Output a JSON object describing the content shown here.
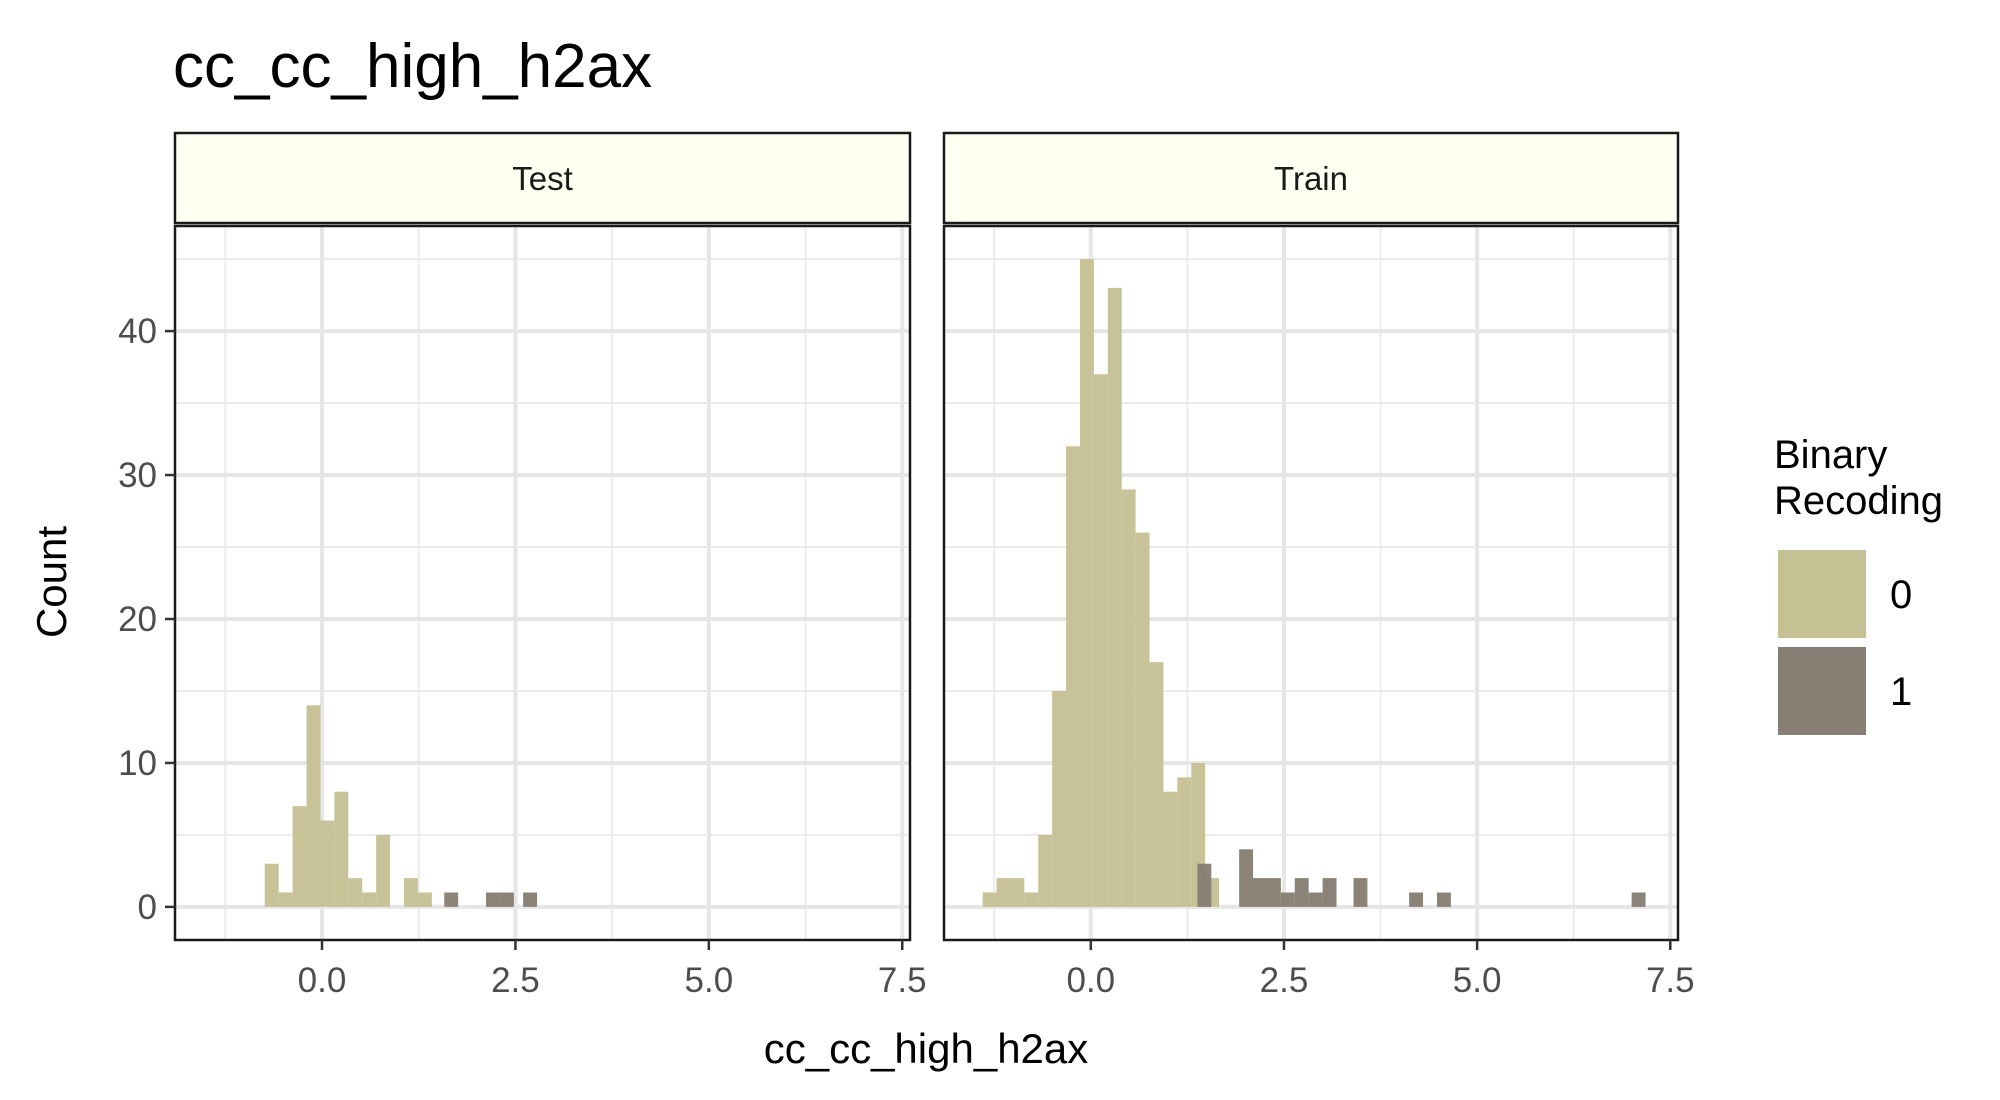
{
  "chart_data": {
    "type": "bar",
    "title": "cc_cc_high_h2ax",
    "xlabel": "cc_cc_high_h2ax",
    "ylabel": "Count",
    "xlim": [
      -1.9,
      7.6
    ],
    "ylim": [
      -2.3,
      47.3
    ],
    "xticks": [
      0.0,
      2.5,
      5.0,
      7.5
    ],
    "xtick_labels": [
      "0.0",
      "2.5",
      "5.0",
      "7.5"
    ],
    "yticks": [
      0,
      10,
      20,
      30,
      40
    ],
    "ytick_labels": [
      "0",
      "10",
      "20",
      "30",
      "40"
    ],
    "bin_width": 0.18,
    "grid": true,
    "legend_position": "right",
    "legend": {
      "title": "Binary\nRecoding",
      "items": [
        {
          "label": "0",
          "color": "#c6c095"
        },
        {
          "label": "1",
          "color": "#877f73"
        }
      ]
    },
    "panels": [
      {
        "label": "Test",
        "series": [
          {
            "name": "0",
            "color": "#c6c095",
            "bins": [
              [
                -0.74,
                3
              ],
              [
                -0.56,
                1
              ],
              [
                -0.38,
                7
              ],
              [
                -0.2,
                14
              ],
              [
                -0.02,
                6
              ],
              [
                0.16,
                8
              ],
              [
                0.34,
                2
              ],
              [
                0.52,
                1
              ],
              [
                0.7,
                5
              ],
              [
                0.88,
                0
              ],
              [
                1.06,
                2
              ],
              [
                1.24,
                1
              ]
            ]
          },
          {
            "name": "1",
            "color": "#877f73",
            "bins": [
              [
                1.58,
                1
              ],
              [
                2.12,
                1
              ],
              [
                2.3,
                1
              ],
              [
                2.6,
                1
              ]
            ]
          }
        ]
      },
      {
        "label": "Train",
        "series": [
          {
            "name": "0",
            "color": "#c6c095",
            "bins": [
              [
                -1.4,
                1
              ],
              [
                -1.22,
                2
              ],
              [
                -1.04,
                2
              ],
              [
                -0.86,
                1
              ],
              [
                -0.68,
                5
              ],
              [
                -0.5,
                15
              ],
              [
                -0.32,
                32
              ],
              [
                -0.14,
                45
              ],
              [
                0.04,
                37
              ],
              [
                0.22,
                43
              ],
              [
                0.4,
                29
              ],
              [
                0.58,
                26
              ],
              [
                0.76,
                17
              ],
              [
                0.94,
                8
              ],
              [
                1.12,
                9
              ],
              [
                1.3,
                10
              ],
              [
                1.48,
                2
              ]
            ]
          },
          {
            "name": "1",
            "color": "#877f73",
            "bins": [
              [
                1.38,
                3
              ],
              [
                1.92,
                4
              ],
              [
                2.1,
                2
              ],
              [
                2.28,
                2
              ],
              [
                2.46,
                1
              ],
              [
                2.64,
                2
              ],
              [
                2.82,
                1
              ],
              [
                3.0,
                2
              ],
              [
                3.4,
                2
              ],
              [
                4.12,
                1
              ],
              [
                4.48,
                1
              ],
              [
                7.0,
                1
              ]
            ]
          }
        ]
      }
    ]
  }
}
